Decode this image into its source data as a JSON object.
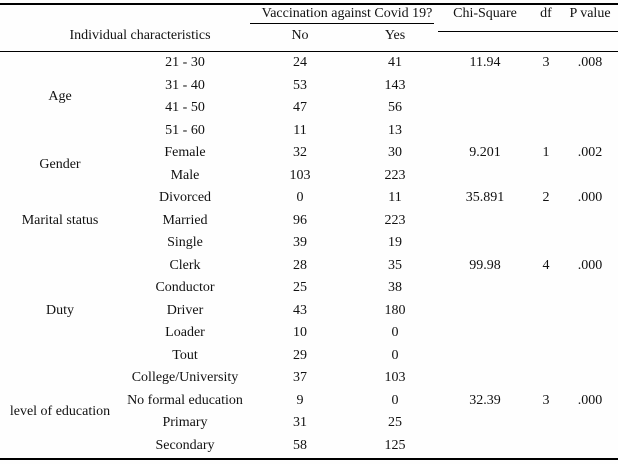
{
  "table": {
    "header": {
      "individual_characteristics": "Individual characteristics",
      "vaccination_group": "Vaccination against Covid 19?",
      "no": "No",
      "yes": "Yes",
      "chi_square": "Chi-Square",
      "df": "df",
      "p_value": "P value"
    },
    "groups": [
      {
        "label": "Age",
        "rows": [
          {
            "sub": "21 - 30",
            "no": "24",
            "yes": "41",
            "chi": "11.94",
            "df": "3",
            "p": ".008"
          },
          {
            "sub": "31 - 40",
            "no": "53",
            "yes": "143"
          },
          {
            "sub": "41 - 50",
            "no": "47",
            "yes": "56"
          },
          {
            "sub": "51 - 60",
            "no": "11",
            "yes": "13"
          }
        ]
      },
      {
        "label": "Gender",
        "rows": [
          {
            "sub": "Female",
            "no": "32",
            "yes": "30",
            "chi": "9.201",
            "df": "1",
            "p": ".002"
          },
          {
            "sub": "Male",
            "no": "103",
            "yes": "223"
          }
        ]
      },
      {
        "label": "Marital status",
        "rows": [
          {
            "sub": "Divorced",
            "no": "0",
            "yes": "11",
            "chi": "35.891",
            "df": "2",
            "p": ".000"
          },
          {
            "sub": "Married",
            "no": "96",
            "yes": "223"
          },
          {
            "sub": "Single",
            "no": "39",
            "yes": "19"
          }
        ]
      },
      {
        "label": "Duty",
        "rows": [
          {
            "sub": "Clerk",
            "no": "28",
            "yes": "35",
            "chi": "99.98",
            "df": "4",
            "p": ".000"
          },
          {
            "sub": "Conductor",
            "no": "25",
            "yes": "38"
          },
          {
            "sub": "Driver",
            "no": "43",
            "yes": "180"
          },
          {
            "sub": "Loader",
            "no": "10",
            "yes": "0"
          },
          {
            "sub": "Tout",
            "no": "29",
            "yes": "0"
          }
        ]
      },
      {
        "label": "level of education",
        "rows": [
          {
            "sub": "College/University",
            "no": "37",
            "yes": "103"
          },
          {
            "sub": "No formal education",
            "no": "9",
            "yes": "0",
            "chi": "32.39",
            "df": "3",
            "p": ".000"
          },
          {
            "sub": "Primary",
            "no": "31",
            "yes": "25"
          },
          {
            "sub": "Secondary",
            "no": "58",
            "yes": "125"
          }
        ]
      }
    ]
  }
}
